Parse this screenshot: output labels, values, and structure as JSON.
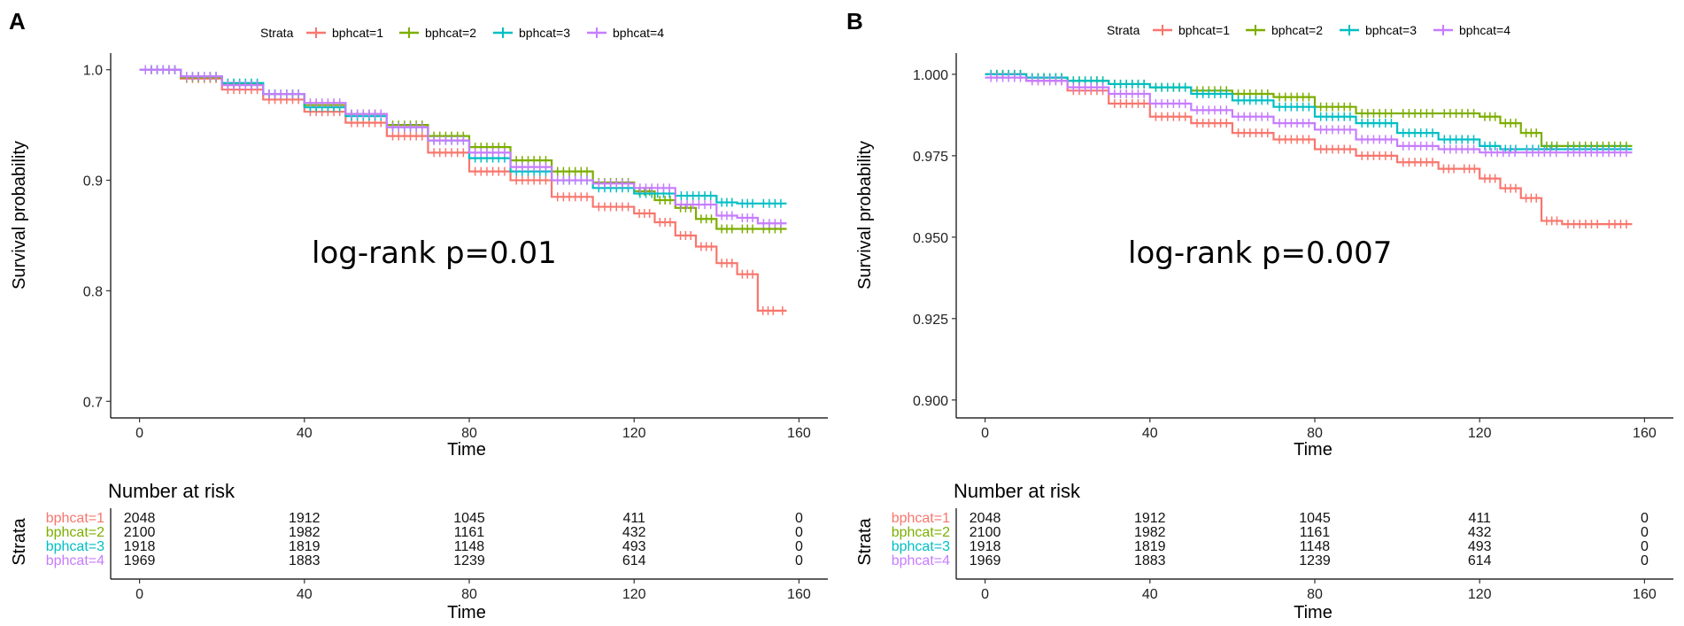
{
  "legend": {
    "title": "Strata",
    "entries": [
      {
        "label": "bphcat=1",
        "color": "#F8766D"
      },
      {
        "label": "bphcat=2",
        "color": "#7CAE00"
      },
      {
        "label": "bphcat=3",
        "color": "#00BFC4"
      },
      {
        "label": "bphcat=4",
        "color": "#C77CFF"
      }
    ]
  },
  "risk_table": {
    "title": "Number at risk",
    "strata_label": "Strata",
    "times": [
      0,
      40,
      80,
      120,
      160
    ],
    "rows": [
      {
        "label": "bphcat=1",
        "color": "#F8766D",
        "values": [
          "2048",
          "1912",
          "1045",
          "411",
          "0"
        ]
      },
      {
        "label": "bphcat=2",
        "color": "#7CAE00",
        "values": [
          "2100",
          "1982",
          "1161",
          "432",
          "0"
        ]
      },
      {
        "label": "bphcat=3",
        "color": "#00BFC4",
        "values": [
          "1918",
          "1819",
          "1148",
          "493",
          "0"
        ]
      },
      {
        "label": "bphcat=4",
        "color": "#C77CFF",
        "values": [
          "1969",
          "1883",
          "1239",
          "614",
          "0"
        ]
      }
    ]
  },
  "chart_data": [
    {
      "panel": "A",
      "type": "line",
      "title": "",
      "xlabel": "Time",
      "ylabel": "Survival probability",
      "xlim": [
        -7,
        167
      ],
      "ylim": [
        0.685,
        1.015
      ],
      "xticks": [
        0,
        40,
        80,
        120,
        160
      ],
      "yticks": [
        0.7,
        0.8,
        0.9,
        1.0
      ],
      "ytick_labels": [
        "0.7",
        "0.8",
        "0.9",
        "1.0"
      ],
      "annotation": "log-rank p=0.01",
      "legend_position": "top",
      "series": [
        {
          "name": "bphcat=1",
          "x": [
            0,
            10,
            20,
            30,
            40,
            50,
            60,
            70,
            80,
            90,
            100,
            110,
            120,
            125,
            130,
            135,
            140,
            145,
            150,
            155,
            157
          ],
          "y": [
            1.0,
            0.992,
            0.982,
            0.973,
            0.962,
            0.952,
            0.94,
            0.925,
            0.908,
            0.9,
            0.885,
            0.876,
            0.87,
            0.862,
            0.85,
            0.84,
            0.825,
            0.815,
            0.782,
            0.782,
            0.782
          ]
        },
        {
          "name": "bphcat=2",
          "x": [
            0,
            10,
            20,
            30,
            40,
            50,
            60,
            70,
            80,
            90,
            100,
            110,
            120,
            125,
            130,
            135,
            140,
            145,
            150,
            157
          ],
          "y": [
            1.0,
            0.993,
            0.987,
            0.978,
            0.968,
            0.96,
            0.95,
            0.94,
            0.93,
            0.918,
            0.908,
            0.898,
            0.89,
            0.882,
            0.875,
            0.865,
            0.856,
            0.856,
            0.856,
            0.856
          ]
        },
        {
          "name": "bphcat=3",
          "x": [
            0,
            10,
            20,
            30,
            40,
            50,
            60,
            70,
            80,
            90,
            100,
            110,
            120,
            130,
            140,
            145,
            150,
            157
          ],
          "y": [
            1.0,
            0.994,
            0.988,
            0.978,
            0.966,
            0.958,
            0.948,
            0.936,
            0.92,
            0.908,
            0.9,
            0.893,
            0.888,
            0.886,
            0.88,
            0.879,
            0.879,
            0.879
          ]
        },
        {
          "name": "bphcat=4",
          "x": [
            0,
            10,
            20,
            30,
            40,
            50,
            60,
            70,
            80,
            90,
            100,
            110,
            120,
            130,
            140,
            145,
            150,
            157
          ],
          "y": [
            1.0,
            0.994,
            0.986,
            0.978,
            0.97,
            0.96,
            0.948,
            0.936,
            0.925,
            0.912,
            0.9,
            0.897,
            0.893,
            0.878,
            0.868,
            0.866,
            0.861,
            0.861
          ]
        }
      ]
    },
    {
      "panel": "B",
      "type": "line",
      "title": "",
      "xlabel": "Time",
      "ylabel": "Survival probability",
      "xlim": [
        -7,
        167
      ],
      "ylim": [
        0.8945,
        1.0065
      ],
      "xticks": [
        0,
        40,
        80,
        120,
        160
      ],
      "yticks": [
        0.9,
        0.925,
        0.95,
        0.975,
        1.0
      ],
      "ytick_labels": [
        "0.900",
        "0.925",
        "0.950",
        "0.975",
        "1.000"
      ],
      "annotation": "log-rank p=0.007",
      "legend_position": "top",
      "series": [
        {
          "name": "bphcat=1",
          "x": [
            0,
            10,
            20,
            30,
            40,
            50,
            60,
            70,
            80,
            90,
            100,
            110,
            115,
            120,
            125,
            130,
            135,
            140,
            150,
            157
          ],
          "y": [
            1.0,
            0.998,
            0.995,
            0.991,
            0.987,
            0.985,
            0.982,
            0.98,
            0.977,
            0.975,
            0.973,
            0.971,
            0.971,
            0.968,
            0.965,
            0.962,
            0.955,
            0.954,
            0.954,
            0.954
          ]
        },
        {
          "name": "bphcat=2",
          "x": [
            0,
            10,
            20,
            30,
            40,
            50,
            60,
            70,
            80,
            90,
            100,
            110,
            120,
            125,
            130,
            135,
            140,
            157
          ],
          "y": [
            1.0,
            0.999,
            0.998,
            0.997,
            0.996,
            0.995,
            0.994,
            0.993,
            0.99,
            0.988,
            0.988,
            0.988,
            0.987,
            0.985,
            0.982,
            0.978,
            0.978,
            0.978
          ]
        },
        {
          "name": "bphcat=3",
          "x": [
            0,
            10,
            20,
            30,
            40,
            50,
            60,
            70,
            80,
            90,
            100,
            110,
            120,
            125,
            130,
            140,
            157
          ],
          "y": [
            1.0,
            0.999,
            0.998,
            0.997,
            0.996,
            0.994,
            0.992,
            0.99,
            0.987,
            0.985,
            0.982,
            0.98,
            0.978,
            0.977,
            0.977,
            0.977,
            0.977
          ]
        },
        {
          "name": "bphcat=4",
          "x": [
            0,
            10,
            20,
            30,
            40,
            50,
            60,
            70,
            80,
            90,
            100,
            110,
            120,
            130,
            140,
            157
          ],
          "y": [
            0.999,
            0.998,
            0.996,
            0.994,
            0.991,
            0.989,
            0.987,
            0.985,
            0.983,
            0.98,
            0.978,
            0.977,
            0.976,
            0.976,
            0.976,
            0.976
          ]
        }
      ]
    }
  ]
}
